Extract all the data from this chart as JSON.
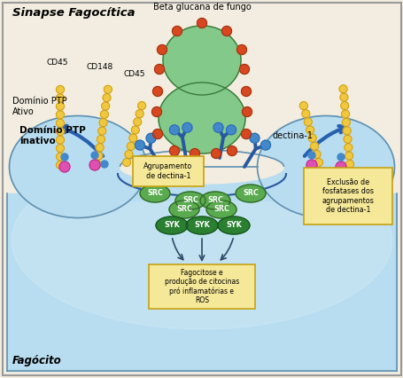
{
  "bg_color": "#f2ede0",
  "cell_color_light": "#b8ddf0",
  "cell_color_mid": "#9ecce8",
  "cell_outline": "#6090b0",
  "fungus_color": "#82c98a",
  "fungus_outline": "#3a7a3a",
  "beta_glucan_color": "#d84820",
  "beta_glucan_outline": "#903010",
  "cd_bead_color": "#f0c840",
  "cd_bead_outline": "#c09010",
  "dectina_color": "#2858a0",
  "dectina_head_color": "#4488cc",
  "src_color": "#5aaa50",
  "src_outline": "#2a6020",
  "syk_color": "#2a8030",
  "syk_outline": "#185020",
  "box_color": "#f5e898",
  "box_edge_color": "#c8a010",
  "arrow_color": "#2860b0",
  "pink_color": "#e050b0",
  "blue_dot_color": "#4488cc",
  "title": "Sinapse Fagocítica",
  "label_beta": "Beta glucana de fungo",
  "label_cd45_1": "CD45",
  "label_cd148": "CD148",
  "label_cd45_2": "CD45",
  "label_dom_ativo": "Domínio PTP\nAtivo",
  "label_dom_inativo": "Domínio PTP\ninativo",
  "label_dectina": "dectina-1",
  "label_agrupamento": "Agrupamento\nde dectina-1",
  "label_exclusao": "Exclusão de\nfosfatases dos\nagrupamentos\nde dectina-1",
  "label_fagocitose": "Fagocitose e\nprodução de citocinas\npró inflamatórias e\nROS",
  "label_fagocito": "Fagócito"
}
